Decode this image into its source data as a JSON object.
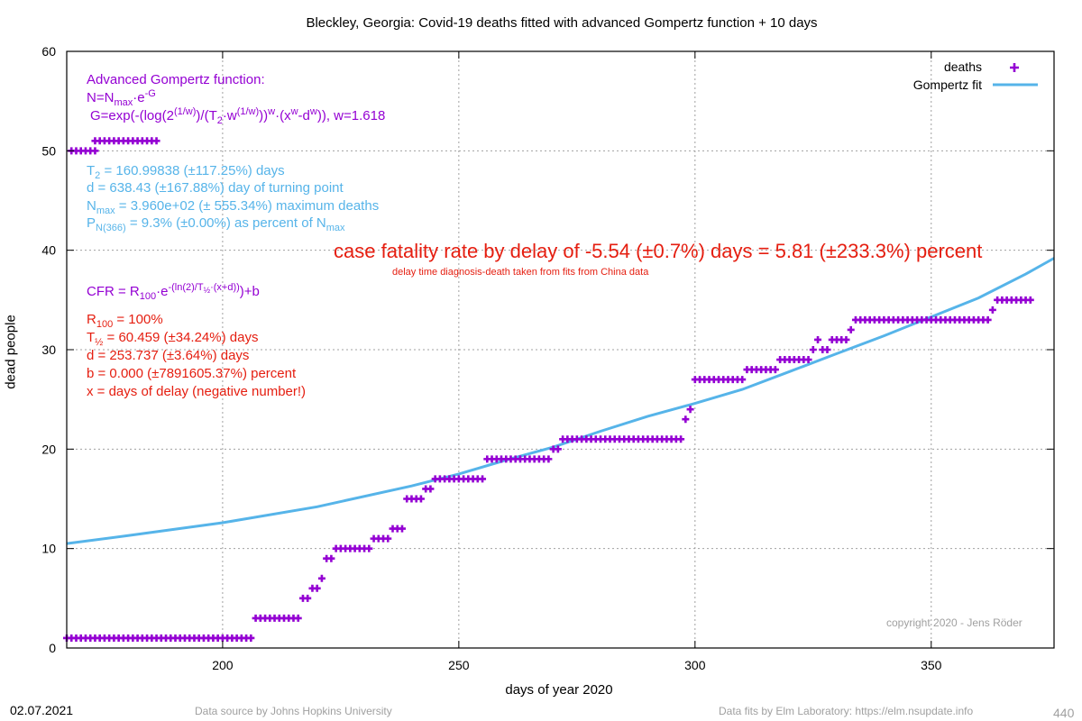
{
  "chart_data": {
    "type": "scatter",
    "title": "Bleckley,  Georgia: Covid-19 deaths fitted with advanced Gompertz function + 10 days",
    "xlabel": "days of year 2020",
    "ylabel": "dead people",
    "xlim": [
      167,
      376
    ],
    "ylim": [
      0,
      60
    ],
    "xticks": [
      200,
      250,
      300,
      350
    ],
    "yticks": [
      0,
      10,
      20,
      30,
      40,
      50,
      60
    ],
    "grid": true,
    "legend_position": "top-right",
    "series": [
      {
        "name": "deaths",
        "marker": "plus",
        "color": "#9400d3",
        "points": [
          [
            167,
            1
          ],
          [
            168,
            1
          ],
          [
            169,
            1
          ],
          [
            170,
            1
          ],
          [
            171,
            1
          ],
          [
            172,
            1
          ],
          [
            173,
            1
          ],
          [
            174,
            1
          ],
          [
            175,
            1
          ],
          [
            176,
            1
          ],
          [
            177,
            1
          ],
          [
            178,
            1
          ],
          [
            179,
            1
          ],
          [
            180,
            1
          ],
          [
            181,
            1
          ],
          [
            182,
            1
          ],
          [
            183,
            1
          ],
          [
            184,
            1
          ],
          [
            185,
            1
          ],
          [
            186,
            1
          ],
          [
            187,
            1
          ],
          [
            188,
            1
          ],
          [
            189,
            1
          ],
          [
            190,
            1
          ],
          [
            191,
            1
          ],
          [
            192,
            1
          ],
          [
            193,
            1
          ],
          [
            194,
            1
          ],
          [
            195,
            1
          ],
          [
            196,
            1
          ],
          [
            197,
            1
          ],
          [
            198,
            1
          ],
          [
            199,
            1
          ],
          [
            200,
            1
          ],
          [
            201,
            1
          ],
          [
            202,
            1
          ],
          [
            203,
            1
          ],
          [
            204,
            1
          ],
          [
            205,
            1
          ],
          [
            206,
            1
          ],
          [
            207,
            3
          ],
          [
            208,
            3
          ],
          [
            209,
            3
          ],
          [
            210,
            3
          ],
          [
            211,
            3
          ],
          [
            212,
            3
          ],
          [
            213,
            3
          ],
          [
            214,
            3
          ],
          [
            215,
            3
          ],
          [
            216,
            3
          ],
          [
            217,
            5
          ],
          [
            218,
            5
          ],
          [
            219,
            6
          ],
          [
            220,
            6
          ],
          [
            221,
            7
          ],
          [
            222,
            9
          ],
          [
            223,
            9
          ],
          [
            224,
            10
          ],
          [
            225,
            10
          ],
          [
            226,
            10
          ],
          [
            227,
            10
          ],
          [
            228,
            10
          ],
          [
            229,
            10
          ],
          [
            230,
            10
          ],
          [
            231,
            10
          ],
          [
            232,
            11
          ],
          [
            233,
            11
          ],
          [
            234,
            11
          ],
          [
            235,
            11
          ],
          [
            236,
            12
          ],
          [
            237,
            12
          ],
          [
            238,
            12
          ],
          [
            239,
            15
          ],
          [
            240,
            15
          ],
          [
            241,
            15
          ],
          [
            242,
            15
          ],
          [
            243,
            16
          ],
          [
            244,
            16
          ],
          [
            245,
            17
          ],
          [
            246,
            17
          ],
          [
            247,
            17
          ],
          [
            248,
            17
          ],
          [
            249,
            17
          ],
          [
            250,
            17
          ],
          [
            251,
            17
          ],
          [
            252,
            17
          ],
          [
            253,
            17
          ],
          [
            254,
            17
          ],
          [
            255,
            17
          ],
          [
            256,
            19
          ],
          [
            257,
            19
          ],
          [
            258,
            19
          ],
          [
            259,
            19
          ],
          [
            260,
            19
          ],
          [
            261,
            19
          ],
          [
            262,
            19
          ],
          [
            263,
            19
          ],
          [
            264,
            19
          ],
          [
            265,
            19
          ],
          [
            266,
            19
          ],
          [
            267,
            19
          ],
          [
            268,
            19
          ],
          [
            269,
            19
          ],
          [
            270,
            20
          ],
          [
            271,
            20
          ],
          [
            272,
            21
          ],
          [
            273,
            21
          ],
          [
            274,
            21
          ],
          [
            275,
            21
          ],
          [
            276,
            21
          ],
          [
            277,
            21
          ],
          [
            278,
            21
          ],
          [
            279,
            21
          ],
          [
            280,
            21
          ],
          [
            281,
            21
          ],
          [
            282,
            21
          ],
          [
            283,
            21
          ],
          [
            284,
            21
          ],
          [
            285,
            21
          ],
          [
            286,
            21
          ],
          [
            287,
            21
          ],
          [
            288,
            21
          ],
          [
            289,
            21
          ],
          [
            290,
            21
          ],
          [
            291,
            21
          ],
          [
            292,
            21
          ],
          [
            293,
            21
          ],
          [
            294,
            21
          ],
          [
            295,
            21
          ],
          [
            296,
            21
          ],
          [
            297,
            21
          ],
          [
            298,
            23
          ],
          [
            299,
            24
          ],
          [
            300,
            27
          ],
          [
            301,
            27
          ],
          [
            302,
            27
          ],
          [
            303,
            27
          ],
          [
            304,
            27
          ],
          [
            305,
            27
          ],
          [
            306,
            27
          ],
          [
            307,
            27
          ],
          [
            308,
            27
          ],
          [
            309,
            27
          ],
          [
            310,
            27
          ],
          [
            311,
            28
          ],
          [
            312,
            28
          ],
          [
            313,
            28
          ],
          [
            314,
            28
          ],
          [
            315,
            28
          ],
          [
            316,
            28
          ],
          [
            317,
            28
          ],
          [
            318,
            29
          ],
          [
            319,
            29
          ],
          [
            320,
            29
          ],
          [
            321,
            29
          ],
          [
            322,
            29
          ],
          [
            323,
            29
          ],
          [
            324,
            29
          ],
          [
            325,
            30
          ],
          [
            326,
            31
          ],
          [
            327,
            30
          ],
          [
            328,
            30
          ],
          [
            329,
            31
          ],
          [
            330,
            31
          ],
          [
            331,
            31
          ],
          [
            332,
            31
          ],
          [
            333,
            32
          ],
          [
            334,
            33
          ],
          [
            335,
            33
          ],
          [
            336,
            33
          ],
          [
            337,
            33
          ],
          [
            338,
            33
          ],
          [
            339,
            33
          ],
          [
            340,
            33
          ],
          [
            341,
            33
          ],
          [
            342,
            33
          ],
          [
            343,
            33
          ],
          [
            344,
            33
          ],
          [
            345,
            33
          ],
          [
            346,
            33
          ],
          [
            347,
            33
          ],
          [
            348,
            33
          ],
          [
            349,
            33
          ],
          [
            350,
            33
          ],
          [
            351,
            33
          ],
          [
            352,
            33
          ],
          [
            353,
            33
          ],
          [
            354,
            33
          ],
          [
            355,
            33
          ],
          [
            356,
            33
          ],
          [
            357,
            33
          ],
          [
            358,
            33
          ],
          [
            359,
            33
          ],
          [
            360,
            33
          ],
          [
            361,
            33
          ],
          [
            362,
            33
          ],
          [
            363,
            34
          ],
          [
            364,
            35
          ],
          [
            365,
            35
          ],
          [
            366,
            35
          ],
          [
            367,
            35
          ],
          [
            368,
            35
          ],
          [
            369,
            35
          ],
          [
            370,
            35
          ],
          [
            371,
            35
          ],
          [
            168,
            50
          ],
          [
            169,
            50
          ],
          [
            170,
            50
          ],
          [
            171,
            50
          ],
          [
            172,
            50
          ],
          [
            173,
            50
          ],
          [
            173,
            51
          ],
          [
            174,
            51
          ],
          [
            175,
            51
          ],
          [
            176,
            51
          ],
          [
            177,
            51
          ],
          [
            178,
            51
          ],
          [
            179,
            51
          ],
          [
            180,
            51
          ],
          [
            181,
            51
          ],
          [
            182,
            51
          ],
          [
            183,
            51
          ],
          [
            184,
            51
          ],
          [
            185,
            51
          ],
          [
            186,
            51
          ]
        ]
      },
      {
        "name": "Gompertz fit",
        "color": "#56b4e9",
        "points": [
          [
            167,
            10.5
          ],
          [
            180,
            11.3
          ],
          [
            200,
            12.6
          ],
          [
            220,
            14.2
          ],
          [
            240,
            16.3
          ],
          [
            250,
            17.5
          ],
          [
            260,
            18.9
          ],
          [
            270,
            20.2
          ],
          [
            280,
            21.8
          ],
          [
            290,
            23.3
          ],
          [
            300,
            24.6
          ],
          [
            310,
            26.0
          ],
          [
            320,
            27.8
          ],
          [
            330,
            29.6
          ],
          [
            340,
            31.4
          ],
          [
            350,
            33.3
          ],
          [
            360,
            35.2
          ],
          [
            370,
            37.6
          ],
          [
            376,
            39.2
          ]
        ]
      }
    ]
  },
  "annotations": {
    "formula_title": "Advanced Gompertz function:",
    "formula_n_1": "N=N",
    "formula_n_2": "max",
    "formula_n_3": "·e",
    "formula_n_4": "-G",
    "formula_g_1": "G=exp(-(log(2",
    "formula_g_2": "(1/w)",
    "formula_g_3": ")/(T",
    "formula_g_4": "2",
    "formula_g_5": "·w",
    "formula_g_6": "(1/w)",
    "formula_g_7": "))",
    "formula_g_8": "w",
    "formula_g_9": "·(x",
    "formula_g_10": "w",
    "formula_g_11": "-d",
    "formula_g_12": "w",
    "formula_g_13": ")), w=1.618",
    "fit_t2_1": "T",
    "fit_t2_2": "2",
    "fit_t2_3": "= 160.99838 (±117.25%) days",
    "fit_d": "d = 638.43 (±167.88%) day of turning point",
    "fit_nmax_1": "N",
    "fit_nmax_2": "max",
    "fit_nmax_3": "= 3.960e+02 (± 555.34%) maximum deaths",
    "fit_p_1": "P",
    "fit_p_2": "N(366)",
    "fit_p_3": "= 9.3% (±0.00%) as percent of N",
    "fit_p_4": "max",
    "cfr_headline": "case fatality rate by delay of -5.54 (±0.7%) days = 5.81 (±233.3%) percent",
    "cfr_note": "delay time diagnosis-death taken from fits from China data",
    "cfr_formula_1": "CFR = R",
    "cfr_formula_2": "100",
    "cfr_formula_3": "·e",
    "cfr_formula_4": "-(ln(2)/T",
    "cfr_formula_5": "½",
    "cfr_formula_6": "·(x+d))",
    "cfr_formula_7": ")+b",
    "cfr_r100_1": "R",
    "cfr_r100_2": "100",
    "cfr_r100_3": "= 100%",
    "cfr_thalf_1": "T",
    "cfr_thalf_2": "½",
    "cfr_thalf_3": "= 60.459 (±34.24%) days",
    "cfr_d": "d = 253.737 (±3.64%) days",
    "cfr_b": "b = 0.000 (±7891605.37%) percent",
    "cfr_x": "x = days of delay (negative number!)",
    "copyright": "copyright 2020 - Jens Röder"
  },
  "footer": {
    "date": "02.07.2021",
    "source": "Data source by Johns Hopkins University",
    "fits": "Data fits by Elm Laboratory: https://elm.nsupdate.info",
    "page": "440"
  },
  "colors": {
    "deaths": "#9400d3",
    "fit": "#56b4e9",
    "cfr": "#e51e10",
    "grid": "#a0a0a0"
  }
}
